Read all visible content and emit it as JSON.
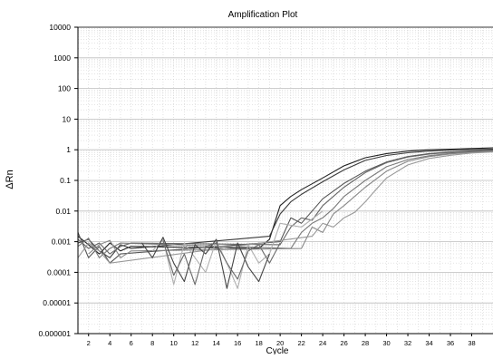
{
  "chart_data": {
    "type": "line",
    "title": "Amplification Plot",
    "xlabel": "Cycle",
    "ylabel": "ΔRn",
    "yscale": "log",
    "xlim": [
      1,
      40
    ],
    "ylim": [
      1e-06,
      10000
    ],
    "y_ticks": [
      {
        "value": 10000,
        "label": "10000"
      },
      {
        "value": 1000,
        "label": "1000"
      },
      {
        "value": 100,
        "label": "100"
      },
      {
        "value": 10,
        "label": "10"
      },
      {
        "value": 1,
        "label": "1"
      },
      {
        "value": 0.1,
        "label": "0.1"
      },
      {
        "value": 0.01,
        "label": "0.01"
      },
      {
        "value": 0.001,
        "label": "0.001"
      },
      {
        "value": 0.0001,
        "label": "0.0001"
      },
      {
        "value": 1e-05,
        "label": "0.00001"
      },
      {
        "value": 1e-06,
        "label": "0.000001"
      }
    ],
    "x_ticks": [
      {
        "value": 2,
        "label": "2"
      },
      {
        "value": 4,
        "label": "4"
      },
      {
        "value": 6,
        "label": "6"
      },
      {
        "value": 8,
        "label": "8"
      },
      {
        "value": 10,
        "label": "10"
      },
      {
        "value": 12,
        "label": "12"
      },
      {
        "value": 14,
        "label": "14"
      },
      {
        "value": 16,
        "label": "16"
      },
      {
        "value": 18,
        "label": "18"
      },
      {
        "value": 20,
        "label": "20"
      },
      {
        "value": 22,
        "label": "22"
      },
      {
        "value": 24,
        "label": "24"
      },
      {
        "value": 26,
        "label": "26"
      },
      {
        "value": 28,
        "label": "28"
      },
      {
        "value": 30,
        "label": "30"
      },
      {
        "value": 32,
        "label": "32"
      },
      {
        "value": 34,
        "label": "34"
      },
      {
        "value": 36,
        "label": "36"
      },
      {
        "value": 38,
        "label": "38"
      }
    ],
    "grid": true,
    "series": [
      {
        "color": "#222222",
        "x": [
          1,
          2,
          3,
          4,
          5,
          6,
          18,
          19,
          20,
          21,
          22,
          24,
          26,
          28,
          30,
          32,
          34,
          36,
          38,
          40
        ],
        "y": [
          0.0015,
          0.0008,
          0.0004,
          0.0009,
          0.0005,
          0.0007,
          0.0006,
          0.0012,
          0.015,
          0.03,
          0.05,
          0.12,
          0.3,
          0.55,
          0.75,
          0.9,
          1.0,
          1.05,
          1.1,
          1.15
        ]
      },
      {
        "color": "#3a3a3a",
        "x": [
          1,
          2,
          3,
          4,
          5,
          6,
          19,
          20,
          21,
          22,
          24,
          26,
          28,
          30,
          32,
          34,
          36,
          38,
          40
        ],
        "y": [
          0.0009,
          0.0012,
          0.0005,
          0.0003,
          0.0008,
          0.0006,
          0.0015,
          0.008,
          0.02,
          0.035,
          0.09,
          0.22,
          0.45,
          0.65,
          0.8,
          0.9,
          0.97,
          1.02,
          1.05
        ]
      },
      {
        "color": "#555555",
        "x": [
          1,
          2,
          3,
          4,
          5,
          20,
          21,
          22,
          23,
          24,
          26,
          28,
          30,
          32,
          34,
          36,
          38,
          40
        ],
        "y": [
          0.002,
          0.0003,
          0.0007,
          0.0002,
          0.0004,
          0.001,
          0.006,
          0.004,
          0.01,
          0.025,
          0.08,
          0.2,
          0.4,
          0.6,
          0.75,
          0.85,
          0.92,
          0.98
        ]
      },
      {
        "color": "#666666",
        "x": [
          1,
          2,
          3,
          4,
          5,
          6,
          20,
          21,
          22,
          23,
          24,
          25,
          26,
          28,
          30,
          32,
          34,
          36,
          38,
          40
        ],
        "y": [
          0.0012,
          0.0006,
          0.0009,
          0.0004,
          0.0007,
          0.0009,
          0.0008,
          0.003,
          0.006,
          0.005,
          0.015,
          0.03,
          0.06,
          0.18,
          0.38,
          0.58,
          0.72,
          0.82,
          0.88,
          0.93
        ]
      },
      {
        "color": "#7a7a7a",
        "x": [
          1,
          2,
          3,
          4,
          5,
          21,
          22,
          23,
          24,
          25,
          26,
          28,
          30,
          32,
          34,
          36,
          38,
          40
        ],
        "y": [
          0.0007,
          0.0013,
          0.0003,
          0.0006,
          0.0009,
          0.0006,
          0.002,
          0.004,
          0.006,
          0.012,
          0.03,
          0.1,
          0.28,
          0.48,
          0.64,
          0.76,
          0.84,
          0.9
        ]
      },
      {
        "color": "#888888",
        "x": [
          2,
          3,
          4,
          5,
          6,
          22,
          23,
          24,
          25,
          26,
          27,
          28,
          30,
          32,
          34,
          36,
          38,
          40
        ],
        "y": [
          0.0004,
          0.0008,
          0.0011,
          0.0003,
          0.0005,
          0.0006,
          0.003,
          0.002,
          0.008,
          0.015,
          0.03,
          0.06,
          0.2,
          0.42,
          0.6,
          0.73,
          0.82,
          0.88
        ]
      },
      {
        "color": "#999999",
        "x": [
          1,
          2,
          3,
          4,
          23,
          24,
          25,
          26,
          27,
          28,
          29,
          30,
          32,
          34,
          36,
          38,
          40
        ],
        "y": [
          0.0003,
          0.0009,
          0.0005,
          0.0002,
          0.0015,
          0.004,
          0.003,
          0.006,
          0.009,
          0.02,
          0.05,
          0.12,
          0.32,
          0.52,
          0.66,
          0.78,
          0.85
        ]
      },
      {
        "color": "#b0b0b0",
        "x": [
          8,
          9,
          10,
          11,
          12,
          13,
          14,
          15,
          16,
          17,
          18,
          19,
          20,
          22,
          24
        ],
        "y": [
          0.0005,
          0.0012,
          4e-05,
          0.0009,
          0.0003,
          0.0001,
          0.0011,
          0.0002,
          3e-05,
          0.0008,
          0.0002,
          0.0004,
          0.004,
          0.003,
          0.01
        ]
      },
      {
        "color": "#444444",
        "x": [
          7,
          8,
          9,
          10,
          11,
          12,
          13,
          14,
          15,
          16,
          17,
          18,
          19
        ],
        "y": [
          0.0009,
          0.0003,
          0.0014,
          0.0002,
          5e-05,
          0.0008,
          0.0004,
          0.0012,
          3e-05,
          0.0009,
          0.00015,
          5e-05,
          0.0004
        ]
      },
      {
        "color": "#6a6a6a",
        "x": [
          9,
          10,
          11,
          12,
          13,
          14,
          15,
          16,
          17,
          18,
          19,
          20
        ],
        "y": [
          0.0011,
          8e-05,
          0.0004,
          4e-05,
          0.0007,
          0.0009,
          0.0002,
          6e-05,
          0.0005,
          0.0008,
          0.0002,
          0.0009
        ]
      }
    ]
  }
}
